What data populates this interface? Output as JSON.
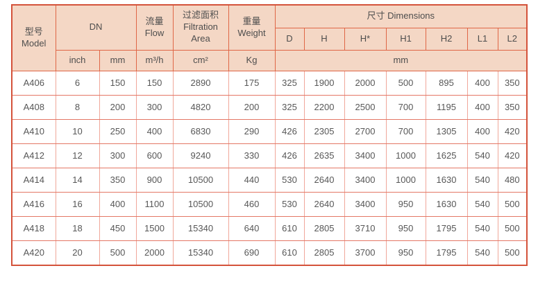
{
  "headers": {
    "model_zh": "型号",
    "model_en": "Model",
    "dn": "DN",
    "flow_zh": "流量",
    "flow_en": "Flow",
    "area_zh": "过滤面积",
    "area_en1": "Filtration",
    "area_en2": "Area",
    "weight_zh": "重量",
    "weight_en": "Weight",
    "dimensions": "尺寸 Dimensions",
    "dim_cols": [
      "D",
      "H",
      "H*",
      "H1",
      "H2",
      "L1",
      "L2"
    ],
    "unit_inch": "inch",
    "unit_mm": "mm",
    "unit_flow": "m³/h",
    "unit_area": "cm²",
    "unit_weight": "Kg",
    "unit_dims": "mm"
  },
  "rows": [
    {
      "model": "A406",
      "inch": "6",
      "mm": "150",
      "flow": "150",
      "area": "2890",
      "weight": "175",
      "d": "325",
      "h": "1900",
      "h_star": "2000",
      "h1": "500",
      "h2": "895",
      "l1": "400",
      "l2": "350"
    },
    {
      "model": "A408",
      "inch": "8",
      "mm": "200",
      "flow": "300",
      "area": "4820",
      "weight": "200",
      "d": "325",
      "h": "2200",
      "h_star": "2500",
      "h1": "700",
      "h2": "1195",
      "l1": "400",
      "l2": "350"
    },
    {
      "model": "A410",
      "inch": "10",
      "mm": "250",
      "flow": "400",
      "area": "6830",
      "weight": "290",
      "d": "426",
      "h": "2305",
      "h_star": "2700",
      "h1": "700",
      "h2": "1305",
      "l1": "400",
      "l2": "420"
    },
    {
      "model": "A412",
      "inch": "12",
      "mm": "300",
      "flow": "600",
      "area": "9240",
      "weight": "330",
      "d": "426",
      "h": "2635",
      "h_star": "3400",
      "h1": "1000",
      "h2": "1625",
      "l1": "540",
      "l2": "420"
    },
    {
      "model": "A414",
      "inch": "14",
      "mm": "350",
      "flow": "900",
      "area": "10500",
      "weight": "440",
      "d": "530",
      "h": "2640",
      "h_star": "3400",
      "h1": "1000",
      "h2": "1630",
      "l1": "540",
      "l2": "480"
    },
    {
      "model": "A416",
      "inch": "16",
      "mm": "400",
      "flow": "1100",
      "area": "10500",
      "weight": "460",
      "d": "530",
      "h": "2640",
      "h_star": "3400",
      "h1": "950",
      "h2": "1630",
      "l1": "540",
      "l2": "500"
    },
    {
      "model": "A418",
      "inch": "18",
      "mm": "450",
      "flow": "1500",
      "area": "15340",
      "weight": "640",
      "d": "610",
      "h": "2805",
      "h_star": "3710",
      "h1": "950",
      "h2": "1795",
      "l1": "540",
      "l2": "500"
    },
    {
      "model": "A420",
      "inch": "20",
      "mm": "500",
      "flow": "2000",
      "area": "15340",
      "weight": "690",
      "d": "610",
      "h": "2805",
      "h_star": "3700",
      "h1": "950",
      "h2": "1795",
      "l1": "540",
      "l2": "500"
    }
  ]
}
